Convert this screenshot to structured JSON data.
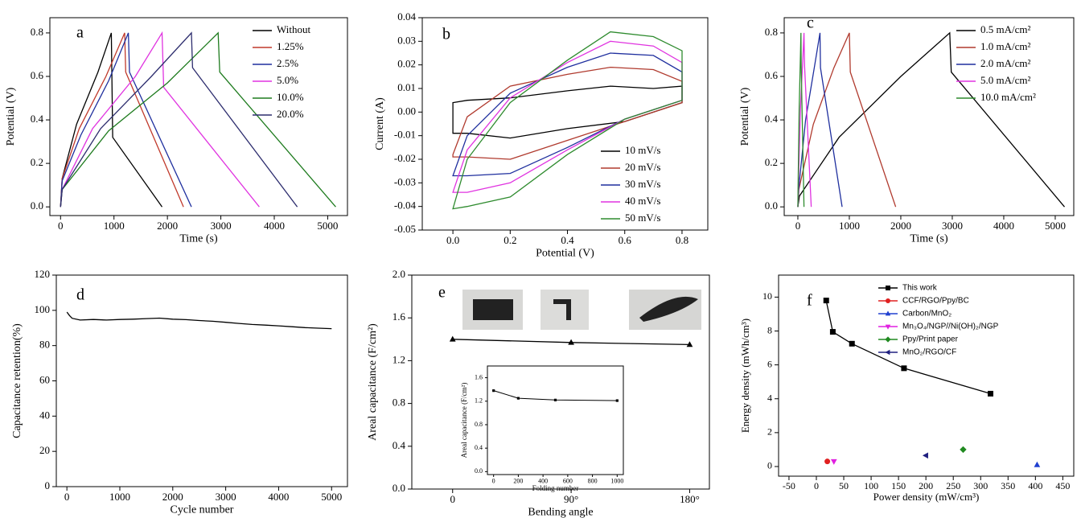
{
  "chart_data": [
    {
      "type": "line",
      "panel_label": "a",
      "x_label": "Time (s)",
      "y_label": "Potential (V)",
      "legend": "upper right",
      "xlim": [
        -200,
        5370
      ],
      "ylim": [
        -0.04,
        0.87
      ],
      "xticks": [
        0,
        1000,
        2000,
        3000,
        4000,
        5000
      ],
      "yticks": [
        {
          "value": 0,
          "label": "0.0"
        },
        0.2,
        0.4,
        0.6,
        0.8
      ],
      "series": [
        {
          "name": "Without",
          "color": "#000000",
          "x": [
            0,
            30,
            300,
            700,
            950,
            975,
            1900
          ],
          "values": [
            0,
            0.13,
            0.38,
            0.62,
            0.8,
            0.32,
            0
          ]
        },
        {
          "name": "1.25%",
          "color": "#c0392b",
          "x": [
            0,
            30,
            350,
            850,
            1200,
            1220,
            2300
          ],
          "values": [
            0,
            0.13,
            0.36,
            0.6,
            0.8,
            0.62,
            0
          ]
        },
        {
          "name": "2.5%",
          "color": "#1f2f9e",
          "x": [
            0,
            30,
            380,
            900,
            1270,
            1290,
            2450
          ],
          "values": [
            0,
            0.12,
            0.33,
            0.58,
            0.8,
            0.62,
            0
          ]
        },
        {
          "name": "5.0%",
          "color": "#e033e0",
          "x": [
            0,
            30,
            600,
            1400,
            1900,
            1930,
            3720
          ],
          "values": [
            0,
            0.08,
            0.36,
            0.6,
            0.8,
            0.55,
            0
          ]
        },
        {
          "name": "10.0%",
          "color": "#1e7b1e",
          "x": [
            0,
            30,
            900,
            2000,
            2950,
            2980,
            5150
          ],
          "values": [
            0,
            0.08,
            0.35,
            0.57,
            0.8,
            0.62,
            0
          ]
        },
        {
          "name": "20.0%",
          "color": "#2d2d6e",
          "x": [
            0,
            30,
            750,
            1700,
            2450,
            2470,
            4430
          ],
          "values": [
            0,
            0.08,
            0.36,
            0.6,
            0.8,
            0.64,
            0
          ]
        }
      ]
    },
    {
      "type": "line",
      "panel_label": "b",
      "x_label": "Potential (V)",
      "y_label": "Current (A)",
      "legend": "lower right",
      "closed": true,
      "xlim": [
        -0.107,
        0.89
      ],
      "ylim": [
        -0.05,
        0.04
      ],
      "xticks": [
        {
          "value": 0,
          "label": "0.0"
        },
        0.2,
        0.4,
        0.6,
        0.8
      ],
      "yticks": [
        -0.05,
        -0.04,
        -0.03,
        -0.02,
        -0.01,
        {
          "value": 0,
          "label": "0.00"
        },
        0.01,
        0.02,
        0.03,
        0.04
      ],
      "series": [
        {
          "name": "10 mV/s",
          "color": "#000000",
          "x": [
            0,
            0.05,
            0.2,
            0.4,
            0.55,
            0.7,
            0.8,
            0.8,
            0.6,
            0.4,
            0.2,
            0.05,
            0
          ],
          "values": [
            0.004,
            0.005,
            0.006,
            0.009,
            0.011,
            0.01,
            0.011,
            0.004,
            -0.004,
            -0.007,
            -0.011,
            -0.009,
            -0.009
          ]
        },
        {
          "name": "20 mV/s",
          "color": "#b03a2e",
          "x": [
            0,
            0.05,
            0.2,
            0.4,
            0.55,
            0.7,
            0.8,
            0.8,
            0.6,
            0.4,
            0.2,
            0.05,
            0
          ],
          "values": [
            -0.018,
            -0.002,
            0.011,
            0.016,
            0.019,
            0.018,
            0.013,
            0.004,
            -0.004,
            -0.012,
            -0.02,
            -0.019,
            -0.019
          ]
        },
        {
          "name": "30 mV/s",
          "color": "#1f2f9e",
          "x": [
            0,
            0.05,
            0.2,
            0.4,
            0.55,
            0.7,
            0.8,
            0.8,
            0.6,
            0.4,
            0.2,
            0.05,
            0
          ],
          "values": [
            -0.027,
            -0.01,
            0.008,
            0.019,
            0.025,
            0.024,
            0.017,
            0.005,
            -0.003,
            -0.015,
            -0.026,
            -0.027,
            -0.027
          ]
        },
        {
          "name": "40 mV/s",
          "color": "#e033e0",
          "x": [
            0,
            0.05,
            0.2,
            0.4,
            0.55,
            0.7,
            0.8,
            0.8,
            0.6,
            0.4,
            0.2,
            0.05,
            0
          ],
          "values": [
            -0.034,
            -0.016,
            0.006,
            0.021,
            0.03,
            0.028,
            0.021,
            0.005,
            -0.003,
            -0.016,
            -0.03,
            -0.034,
            -0.034
          ]
        },
        {
          "name": "50 mV/s",
          "color": "#2e8b2e",
          "x": [
            0,
            0.05,
            0.2,
            0.4,
            0.55,
            0.7,
            0.8,
            0.8,
            0.6,
            0.4,
            0.2,
            0.05,
            0
          ],
          "values": [
            -0.041,
            -0.02,
            0.004,
            0.022,
            0.034,
            0.032,
            0.026,
            0.005,
            -0.003,
            -0.018,
            -0.036,
            -0.04,
            -0.041
          ]
        }
      ]
    },
    {
      "type": "line",
      "panel_label": "c",
      "x_label": "Time (s)",
      "y_label": "Potential (V)",
      "legend": "upper right",
      "xlim": [
        -265,
        5360
      ],
      "ylim": [
        -0.04,
        0.87
      ],
      "xticks": [
        0,
        1000,
        2000,
        3000,
        4000,
        5000
      ],
      "yticks": [
        {
          "value": 0,
          "label": "0.0"
        },
        0.2,
        0.4,
        0.6,
        0.8
      ],
      "series": [
        {
          "name": "0.5 mA/cm²",
          "color": "#000000",
          "x": [
            0,
            30,
            800,
            2000,
            2950,
            2980,
            5180
          ],
          "values": [
            0,
            0.05,
            0.32,
            0.6,
            0.8,
            0.62,
            0
          ]
        },
        {
          "name": "1.0 mA/cm²",
          "color": "#b03a2e",
          "x": [
            0,
            20,
            300,
            700,
            1000,
            1020,
            1900
          ],
          "values": [
            0,
            0.08,
            0.38,
            0.64,
            0.8,
            0.62,
            0
          ]
        },
        {
          "name": "2.0 mA/cm²",
          "color": "#1f2f9e",
          "x": [
            0,
            15,
            150,
            320,
            430,
            440,
            860
          ],
          "values": [
            0,
            0.08,
            0.4,
            0.64,
            0.8,
            0.64,
            0
          ]
        },
        {
          "name": "5.0 mA/cm²",
          "color": "#e033e0",
          "x": [
            0,
            10,
            50,
            100,
            120,
            130,
            260
          ],
          "values": [
            0,
            0.1,
            0.45,
            0.7,
            0.8,
            0.65,
            0
          ]
        },
        {
          "name": "10.0 mA/cm²",
          "color": "#2e8b2e",
          "x": [
            0,
            5,
            25,
            50,
            60,
            65,
            120
          ],
          "values": [
            0,
            0.1,
            0.45,
            0.7,
            0.8,
            0.65,
            0
          ]
        }
      ]
    },
    {
      "type": "line",
      "panel_label": "d",
      "x_label": "Cycle number",
      "y_label": "Capacitance retention(%)",
      "xlim": [
        -200,
        5300
      ],
      "ylim": [
        0,
        120
      ],
      "xticks": [
        0,
        1000,
        2000,
        3000,
        4000,
        5000
      ],
      "yticks": [
        0,
        20,
        40,
        60,
        80,
        100,
        120
      ],
      "series": [
        {
          "color": "#000000",
          "x": [
            0,
            50,
            100,
            250,
            500,
            750,
            1000,
            1250,
            1500,
            1750,
            2000,
            2250,
            2500,
            2750,
            3000,
            3250,
            3500,
            3750,
            4000,
            4250,
            4500,
            4750,
            5000
          ],
          "values": [
            99,
            97,
            95.5,
            94.5,
            94.8,
            94.5,
            94.8,
            95,
            95.3,
            95.6,
            95,
            94.7,
            94.2,
            93.8,
            93.2,
            92.6,
            92,
            91.6,
            91.2,
            90.7,
            90.2,
            89.9,
            89.6
          ]
        }
      ]
    },
    {
      "type": "line",
      "panel_label": "e",
      "x_label": "Bending angle",
      "y_label": "Areal capacitance (F/cm²)",
      "xlim": [
        -31,
        195
      ],
      "ylim": [
        0,
        2.0
      ],
      "xticks": [
        0,
        {
          "value": 90,
          "label": "90°"
        },
        {
          "value": 180,
          "label": "180°"
        }
      ],
      "yticks": [
        {
          "value": 0,
          "label": "0.0"
        },
        0.4,
        0.8,
        1.2,
        1.6,
        {
          "value": 2,
          "label": "2.0"
        }
      ],
      "series": [
        {
          "color": "#000000",
          "marker": "triangle-up",
          "x": [
            0,
            90,
            180
          ],
          "values": [
            1.4,
            1.37,
            1.35
          ]
        }
      ]
    },
    {
      "type": "line",
      "x_label": "Folding number",
      "y_label": "Areal capacitance (F/cm²)",
      "xlim": [
        -50,
        1050
      ],
      "ylim": [
        -0.05,
        1.8
      ],
      "xticks": [
        0,
        200,
        400,
        600,
        800,
        1000
      ],
      "yticks": [
        {
          "value": 0,
          "label": "0.0"
        },
        0.4,
        0.8,
        1.2,
        1.6
      ],
      "series": [
        {
          "color": "#000000",
          "marker": "square",
          "x": [
            0,
            200,
            500,
            1000
          ],
          "values": [
            1.38,
            1.25,
            1.22,
            1.21
          ]
        }
      ]
    },
    {
      "type": "scatter",
      "panel_label": "f",
      "x_label": "Power density (mW/cm³)",
      "y_label": "Energy density (mWh/cm³)",
      "legend": "upper right",
      "xlim": [
        -69,
        470
      ],
      "ylim": [
        -0.57,
        11.3
      ],
      "xticks": [
        -50,
        0,
        50,
        100,
        150,
        200,
        250,
        300,
        350,
        400,
        450
      ],
      "yticks": [
        0,
        2,
        4,
        6,
        8,
        10
      ],
      "series": [
        {
          "name": "This work",
          "color": "#000000",
          "marker": "square",
          "connect": true,
          "x": [
            18,
            30,
            65,
            160,
            318
          ],
          "values": [
            9.8,
            7.95,
            7.25,
            5.8,
            4.3
          ]
        },
        {
          "name": "CCF/RGO/Ppy/BC",
          "color": "#e02020",
          "marker": "circle",
          "x": [
            20
          ],
          "values": [
            0.3
          ]
        },
        {
          "name": "Carbon/MnO₂",
          "color": "#2040d0",
          "marker": "triangle-up",
          "x": [
            403
          ],
          "values": [
            0.1
          ]
        },
        {
          "name": "Mn₃O₄/NGP//Ni(OH)₂/NGP",
          "color": "#e020e0",
          "marker": "triangle-down",
          "x": [
            32
          ],
          "values": [
            0.3
          ]
        },
        {
          "name": "Ppy/Print paper",
          "color": "#208a20",
          "marker": "diamond",
          "x": [
            268
          ],
          "values": [
            1.0
          ]
        },
        {
          "name": "MnO₂/RGO/CF",
          "color": "#202080",
          "marker": "triangle-left",
          "x": [
            200
          ],
          "values": [
            0.65
          ]
        }
      ]
    }
  ]
}
